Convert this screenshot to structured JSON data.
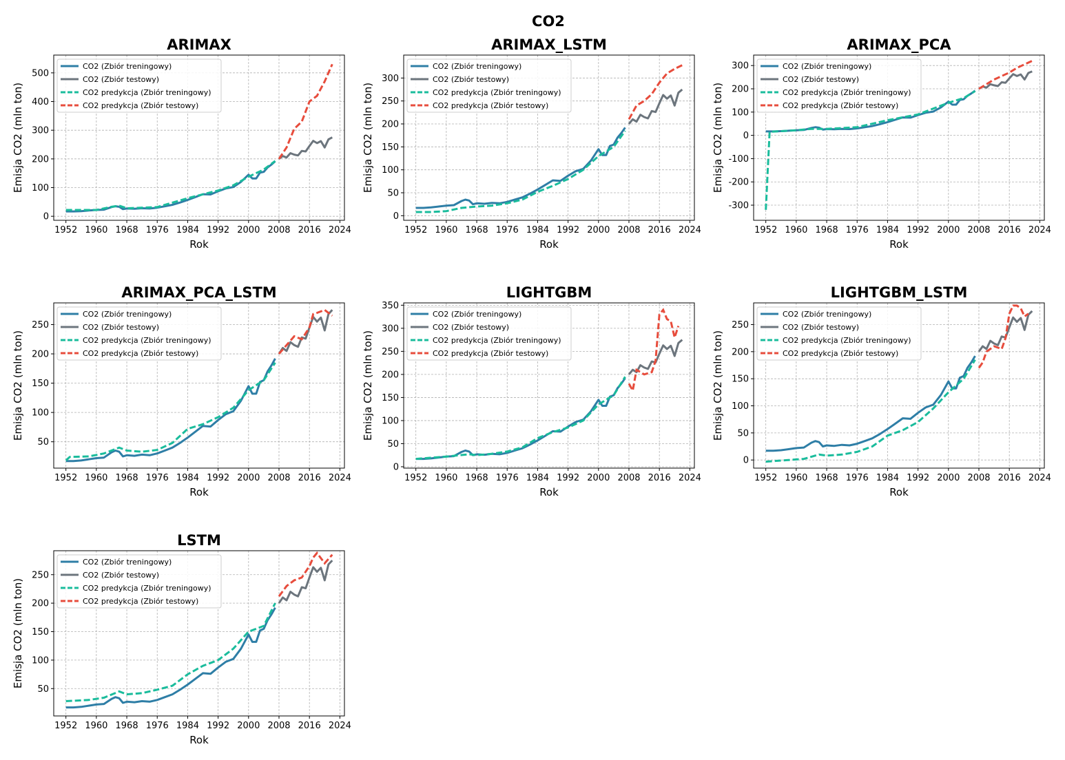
{
  "suptitle": "CO2",
  "legend_labels": {
    "train": "CO2 (Zbiór treningowy)",
    "test": "CO2 (Zbiór testowy)",
    "pred_train": "CO2 predykcja (Zbiór treningowy)",
    "pred_test": "CO2 predykcja (Zbiór testowy)"
  },
  "colors": {
    "train": "#2e7ea6",
    "test": "#6c757d",
    "pred_train": "#1abc9c",
    "pred_test": "#e74c3c"
  },
  "x_ticks": [
    1952,
    1960,
    1968,
    1976,
    1984,
    1992,
    2000,
    2008,
    2016,
    2024
  ],
  "chart_data": [
    {
      "type": "line",
      "title": "ARIMAX",
      "xlabel": "Rok",
      "ylabel": "Emisja CO2 (mln ton)",
      "xlim": [
        1948.8,
        2025.2
      ],
      "ylim": [
        -14,
        562
      ],
      "yticks": [
        0,
        100,
        200,
        300,
        400,
        500
      ],
      "legend": "top-left",
      "grid": true,
      "pred_train": {
        "x": [
          1952,
          1960,
          1964,
          1966,
          1968,
          1976,
          1984,
          1992,
          1996,
          2000,
          2004,
          2007
        ],
        "y": [
          22,
          22,
          33,
          37,
          28,
          32,
          63,
          90,
          108,
          138,
          163,
          193
        ]
      },
      "pred_test": {
        "x": [
          2008,
          2010,
          2012,
          2014,
          2016,
          2018,
          2020,
          2022
        ],
        "y": [
          200,
          240,
          305,
          330,
          400,
          420,
          470,
          530
        ]
      }
    },
    {
      "type": "line",
      "title": "ARIMAX_LSTM",
      "xlabel": "Rok",
      "ylabel": "Emisja CO2 (mln ton)",
      "xlim": [
        1948.8,
        2025.2
      ],
      "ylim": [
        -10,
        350
      ],
      "yticks": [
        0,
        50,
        100,
        150,
        200,
        250,
        300
      ],
      "legend": "top-left",
      "grid": true,
      "pred_train": {
        "x": [
          1952,
          1956,
          1960,
          1964,
          1968,
          1972,
          1976,
          1980,
          1984,
          1988,
          1992,
          1996,
          2000,
          2004,
          2007
        ],
        "y": [
          8,
          8,
          10,
          17,
          20,
          22,
          27,
          35,
          52,
          65,
          80,
          100,
          130,
          150,
          185
        ]
      },
      "pred_test": {
        "x": [
          2008,
          2010,
          2012,
          2014,
          2016,
          2018,
          2020,
          2022
        ],
        "y": [
          210,
          240,
          250,
          265,
          290,
          310,
          320,
          328
        ]
      }
    },
    {
      "type": "line",
      "title": "ARIMAX_PCA",
      "xlabel": "Rok",
      "ylabel": "Emisja CO2 (mln ton)",
      "xlim": [
        1948.8,
        2025.2
      ],
      "ylim": [
        -365,
        345
      ],
      "yticks": [
        -300,
        -200,
        -100,
        0,
        100,
        200,
        300
      ],
      "legend": "top-left",
      "grid": true,
      "pred_train": {
        "x": [
          1952,
          1953,
          1960,
          1964,
          1968,
          1976,
          1984,
          1992,
          2000,
          2004,
          2007
        ],
        "y": [
          -320,
          15,
          22,
          28,
          28,
          35,
          65,
          90,
          140,
          160,
          190
        ]
      },
      "pred_test": {
        "x": [
          2008,
          2012,
          2016,
          2018,
          2020,
          2022
        ],
        "y": [
          200,
          240,
          270,
          290,
          305,
          320
        ]
      }
    },
    {
      "type": "line",
      "title": "ARIMAX_PCA_LSTM",
      "xlabel": "Rok",
      "ylabel": "Emisja CO2 (mln ton)",
      "xlim": [
        1948.8,
        2025.2
      ],
      "ylim": [
        5,
        287
      ],
      "yticks": [
        50,
        100,
        150,
        200,
        250
      ],
      "legend": "top-left",
      "grid": true,
      "pred_train": {
        "x": [
          1952,
          1953,
          1958,
          1962,
          1966,
          1968,
          1972,
          1976,
          1980,
          1984,
          1988,
          1992,
          1996,
          2000,
          2004,
          2007
        ],
        "y": [
          18,
          24,
          25,
          30,
          40,
          35,
          33,
          36,
          48,
          72,
          80,
          92,
          108,
          138,
          155,
          185
        ]
      },
      "pred_test": {
        "x": [
          2008,
          2010,
          2012,
          2014,
          2016,
          2017,
          2018,
          2020,
          2022
        ],
        "y": [
          200,
          215,
          230,
          225,
          245,
          268,
          270,
          275,
          265
        ]
      }
    },
    {
      "type": "line",
      "title": "LIGHTGBM",
      "xlabel": "Rok",
      "ylabel": "Emisja CO2 (mln ton)",
      "xlim": [
        1948.8,
        2025.2
      ],
      "ylim": [
        -3,
        355
      ],
      "yticks": [
        0,
        50,
        100,
        150,
        200,
        250,
        300,
        350
      ],
      "legend": "top-left",
      "grid": true,
      "pred_train": {
        "x": [
          1952,
          1960,
          1966,
          1968,
          1972,
          1976,
          1980,
          1984,
          1988,
          1992,
          1996,
          2000,
          2004,
          2007
        ],
        "y": [
          17,
          22,
          27,
          25,
          28,
          33,
          42,
          62,
          75,
          85,
          100,
          135,
          155,
          195
        ]
      },
      "pred_test": {
        "x": [
          2008,
          2009,
          2010,
          2012,
          2014,
          2015,
          2016,
          2017,
          2018,
          2019,
          2020,
          2021
        ],
        "y": [
          180,
          165,
          210,
          200,
          205,
          230,
          330,
          340,
          320,
          315,
          280,
          305
        ]
      }
    },
    {
      "type": "line",
      "title": "LIGHTGBM_LSTM",
      "xlabel": "Rok",
      "ylabel": "Emisja CO2 (mln ton)",
      "xlim": [
        1948.8,
        2025.2
      ],
      "ylim": [
        -15,
        290
      ],
      "yticks": [
        0,
        50,
        100,
        150,
        200,
        250
      ],
      "legend": "top-left",
      "grid": true,
      "pred_train": {
        "x": [
          1952,
          1958,
          1962,
          1966,
          1968,
          1972,
          1976,
          1980,
          1984,
          1988,
          1992,
          1996,
          2000,
          2004,
          2007
        ],
        "y": [
          -3,
          0,
          2,
          10,
          8,
          10,
          15,
          25,
          45,
          55,
          70,
          95,
          125,
          150,
          185
        ]
      },
      "pred_test": {
        "x": [
          2008,
          2009,
          2010,
          2012,
          2014,
          2015,
          2016,
          2017,
          2018,
          2019,
          2020,
          2021
        ],
        "y": [
          170,
          180,
          200,
          210,
          205,
          225,
          270,
          285,
          285,
          280,
          265,
          270
        ]
      }
    },
    {
      "type": "line",
      "title": "LSTM",
      "xlabel": "Rok",
      "ylabel": "Emisja CO2 (mln ton)",
      "xlim": [
        1948.8,
        2025.2
      ],
      "ylim": [
        2,
        292
      ],
      "yticks": [
        50,
        100,
        150,
        200,
        250
      ],
      "legend": "top-left",
      "grid": true,
      "pred_train": {
        "x": [
          1952,
          1958,
          1962,
          1966,
          1968,
          1972,
          1976,
          1980,
          1984,
          1988,
          1992,
          1996,
          2000,
          2002,
          2004,
          2007
        ],
        "y": [
          28,
          30,
          34,
          45,
          40,
          42,
          48,
          55,
          75,
          90,
          100,
          120,
          150,
          155,
          160,
          200
        ]
      },
      "pred_test": {
        "x": [
          2008,
          2010,
          2012,
          2014,
          2016,
          2017,
          2018,
          2020,
          2022
        ],
        "y": [
          212,
          230,
          240,
          245,
          265,
          280,
          288,
          270,
          285
        ]
      }
    }
  ],
  "actual_train": {
    "x": [
      1952,
      1954,
      1956,
      1958,
      1960,
      1962,
      1964,
      1965,
      1966,
      1967,
      1968,
      1970,
      1972,
      1974,
      1976,
      1978,
      1980,
      1982,
      1984,
      1986,
      1988,
      1990,
      1992,
      1994,
      1996,
      1998,
      2000,
      2001,
      2002,
      2003,
      2004,
      2005,
      2006,
      2007
    ],
    "y": [
      17,
      17,
      18,
      20,
      22,
      23,
      32,
      35,
      33,
      25,
      27,
      26,
      28,
      27,
      30,
      35,
      40,
      48,
      57,
      67,
      77,
      76,
      87,
      97,
      102,
      120,
      145,
      132,
      132,
      152,
      155,
      170,
      180,
      192
    ]
  },
  "actual_test": {
    "x": [
      2008,
      2009,
      2010,
      2011,
      2012,
      2013,
      2014,
      2015,
      2016,
      2017,
      2018,
      2019,
      2020,
      2021,
      2022
    ],
    "y": [
      200,
      210,
      205,
      220,
      215,
      212,
      228,
      226,
      245,
      263,
      255,
      262,
      240,
      268,
      275
    ]
  }
}
